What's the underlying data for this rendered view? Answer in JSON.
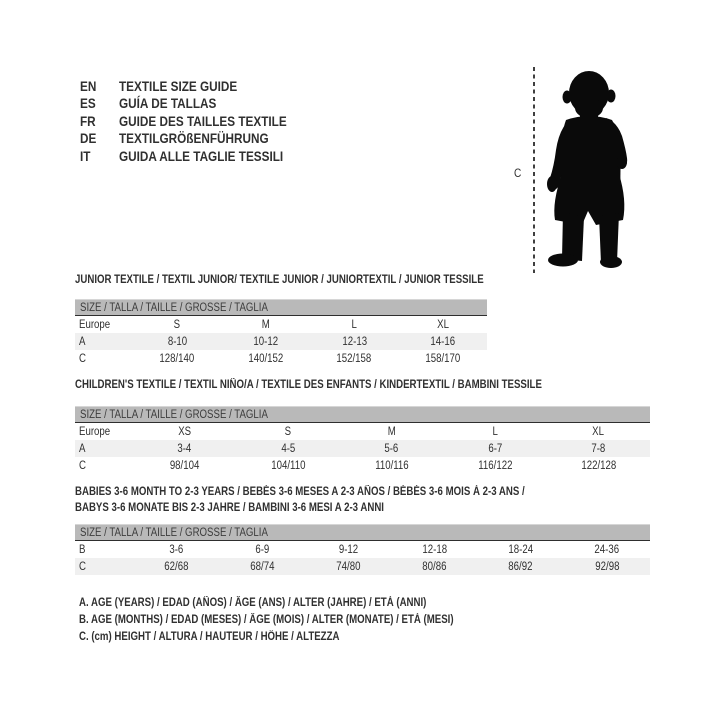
{
  "languages": [
    {
      "code": "EN",
      "label": "TEXTILE SIZE GUIDE"
    },
    {
      "code": "ES",
      "label": "GUÍA DE TALLAS"
    },
    {
      "code": "FR",
      "label": "GUIDE DES TAILLES TEXTILE"
    },
    {
      "code": "DE",
      "label": "TEXTILGRÖßENFÜHRUNG"
    },
    {
      "code": "IT",
      "label": "GUIDA ALLE TAGLIE TESSILI"
    }
  ],
  "figure": {
    "measure_label": "C",
    "icon": "toddler-silhouette-icon"
  },
  "size_header": "SIZE / TALLA / TAILLE / GRÖSSE / TAGLIA",
  "tables": [
    {
      "title": "JUNIOR TEXTILE / TEXTIL JUNIOR/ TEXTILE JUNIOR / JUNIORTEXTIL / JUNIOR TESSILE",
      "rows": [
        {
          "label": "Europe",
          "values": [
            "S",
            "M",
            "L",
            "XL"
          ]
        },
        {
          "label": "A",
          "values": [
            "8-10",
            "10-12",
            "12-13",
            "14-16"
          ]
        },
        {
          "label": "C",
          "values": [
            "128/140",
            "140/152",
            "152/158",
            "158/170"
          ]
        }
      ]
    },
    {
      "title": "CHILDREN'S TEXTILE / TEXTIL NIÑO/A / TEXTILE DES ENFANTS / KINDERTEXTIL / BAMBINI TESSILE",
      "rows": [
        {
          "label": "Europe",
          "values": [
            "XS",
            "S",
            "M",
            "L",
            "XL"
          ]
        },
        {
          "label": "A",
          "values": [
            "3-4",
            "4-5",
            "5-6",
            "6-7",
            "7-8"
          ]
        },
        {
          "label": "C",
          "values": [
            "98/104",
            "104/110",
            "110/116",
            "116/122",
            "122/128"
          ]
        }
      ]
    },
    {
      "title_line1": "BABIES 3-6 MONTH TO 2-3 YEARS / BEBÉS 3-6 MESES A 2-3 AÑOS / BÉBÉS 3-6 MOIS À 2-3 ANS /",
      "title_line2": "BABYS 3-6 MONATE BIS 2-3 JAHRE / BAMBINI 3-6 MESI A 2-3 ANNI",
      "rows": [
        {
          "label": "B",
          "values": [
            "3-6",
            "6-9",
            "9-12",
            "12-18",
            "18-24",
            "24-36"
          ]
        },
        {
          "label": "C",
          "values": [
            "62/68",
            "68/74",
            "74/80",
            "80/86",
            "86/92",
            "92/98"
          ]
        }
      ]
    }
  ],
  "notes": [
    "A. AGE (YEARS) / EDAD (AÑOS) / ÂGE (ANS) / ALTER (JAHRE) / ETÀ (ANNI)",
    "B. AGE (MONTHS) / EDAD (MESES) / ÂGE (MOIS) / ALTER (MONATE) / ETÀ (MESI)",
    "C. (cm) HEIGHT / ALTURA / HAUTEUR / HÖHE / ALTEZZA"
  ],
  "colors": {
    "header_bar": "#b9b9b9",
    "row_alt": "#f0f0f0",
    "bar_divider": "#2e2e2e",
    "text": "#303030",
    "silhouette": "#0a0a0a",
    "dash_line": "#3f3f3f"
  }
}
